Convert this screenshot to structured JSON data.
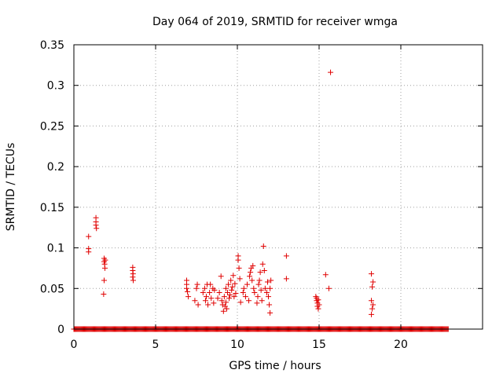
{
  "chart_data": {
    "type": "scatter",
    "title": "Day 064 of 2019, SRMTID for receiver wmga",
    "xlabel": "GPS time / hours",
    "ylabel": "SRMTID / TECUs",
    "xlim": [
      0,
      25
    ],
    "ylim": [
      0,
      0.35
    ],
    "grid": true,
    "marker": "+",
    "marker_color": "#e00000",
    "x_ticks": [
      0,
      5,
      10,
      15,
      20
    ],
    "y_ticks": [
      0,
      0.05,
      0.1,
      0.15,
      0.2,
      0.25,
      0.3,
      0.35
    ],
    "x_tick_labels": [
      "0",
      "5",
      "10",
      "15",
      "20"
    ],
    "y_tick_labels": [
      "0",
      "0.05",
      "0.1",
      "0.15",
      "0.2",
      "0.25",
      "0.3",
      "0.35"
    ],
    "baseline": {
      "y": 0,
      "x_start": 0.0,
      "x_end": 22.9,
      "x_step": 0.05
    },
    "series": [
      {
        "name": "SRMTID",
        "points": [
          [
            0.9,
            0.114
          ],
          [
            0.9,
            0.099
          ],
          [
            0.9,
            0.095
          ],
          [
            1.35,
            0.137
          ],
          [
            1.35,
            0.132
          ],
          [
            1.35,
            0.128
          ],
          [
            1.38,
            0.124
          ],
          [
            1.85,
            0.087
          ],
          [
            1.85,
            0.083
          ],
          [
            1.88,
            0.08
          ],
          [
            1.9,
            0.075
          ],
          [
            1.85,
            0.06
          ],
          [
            1.82,
            0.043
          ],
          [
            1.92,
            0.085
          ],
          [
            3.6,
            0.076
          ],
          [
            3.6,
            0.072
          ],
          [
            3.62,
            0.068
          ],
          [
            3.6,
            0.064
          ],
          [
            3.63,
            0.06
          ],
          [
            6.9,
            0.06
          ],
          [
            6.9,
            0.055
          ],
          [
            6.9,
            0.05
          ],
          [
            6.95,
            0.046
          ],
          [
            7.0,
            0.04
          ],
          [
            7.4,
            0.035
          ],
          [
            7.5,
            0.05
          ],
          [
            7.55,
            0.055
          ],
          [
            7.6,
            0.03
          ],
          [
            7.9,
            0.045
          ],
          [
            8.0,
            0.05
          ],
          [
            8.05,
            0.035
          ],
          [
            8.1,
            0.04
          ],
          [
            8.15,
            0.055
          ],
          [
            8.2,
            0.03
          ],
          [
            8.3,
            0.045
          ],
          [
            8.35,
            0.055
          ],
          [
            8.4,
            0.038
          ],
          [
            8.5,
            0.05
          ],
          [
            8.55,
            0.032
          ],
          [
            8.6,
            0.048
          ],
          [
            8.8,
            0.038
          ],
          [
            8.9,
            0.045
          ],
          [
            9.0,
            0.065
          ],
          [
            9.05,
            0.035
          ],
          [
            9.1,
            0.03
          ],
          [
            9.15,
            0.022
          ],
          [
            9.2,
            0.04
          ],
          [
            9.25,
            0.028
          ],
          [
            9.3,
            0.05
          ],
          [
            9.3,
            0.033
          ],
          [
            9.35,
            0.025
          ],
          [
            9.4,
            0.045
          ],
          [
            9.45,
            0.055
          ],
          [
            9.5,
            0.038
          ],
          [
            9.55,
            0.042
          ],
          [
            9.6,
            0.06
          ],
          [
            9.65,
            0.048
          ],
          [
            9.7,
            0.052
          ],
          [
            9.75,
            0.066
          ],
          [
            9.8,
            0.04
          ],
          [
            9.85,
            0.056
          ],
          [
            9.9,
            0.044
          ],
          [
            10.05,
            0.09
          ],
          [
            10.05,
            0.085
          ],
          [
            10.1,
            0.075
          ],
          [
            10.15,
            0.062
          ],
          [
            10.2,
            0.033
          ],
          [
            10.35,
            0.045
          ],
          [
            10.4,
            0.05
          ],
          [
            10.5,
            0.04
          ],
          [
            10.6,
            0.055
          ],
          [
            10.7,
            0.035
          ],
          [
            10.75,
            0.065
          ],
          [
            10.8,
            0.07
          ],
          [
            10.85,
            0.075
          ],
          [
            10.9,
            0.06
          ],
          [
            10.95,
            0.078
          ],
          [
            11.0,
            0.05
          ],
          [
            11.05,
            0.045
          ],
          [
            11.2,
            0.032
          ],
          [
            11.25,
            0.04
          ],
          [
            11.3,
            0.055
          ],
          [
            11.35,
            0.06
          ],
          [
            11.4,
            0.07
          ],
          [
            11.45,
            0.048
          ],
          [
            11.5,
            0.035
          ],
          [
            11.55,
            0.08
          ],
          [
            11.6,
            0.102
          ],
          [
            11.65,
            0.072
          ],
          [
            11.7,
            0.05
          ],
          [
            11.8,
            0.045
          ],
          [
            11.85,
            0.058
          ],
          [
            11.9,
            0.04
          ],
          [
            11.95,
            0.03
          ],
          [
            12.0,
            0.05
          ],
          [
            12.0,
            0.02
          ],
          [
            12.05,
            0.06
          ],
          [
            13.0,
            0.09
          ],
          [
            13.0,
            0.062
          ],
          [
            14.8,
            0.04
          ],
          [
            14.85,
            0.038
          ],
          [
            14.85,
            0.035
          ],
          [
            14.9,
            0.032
          ],
          [
            14.9,
            0.028
          ],
          [
            14.95,
            0.036
          ],
          [
            14.95,
            0.025
          ],
          [
            15.0,
            0.03
          ],
          [
            15.4,
            0.067
          ],
          [
            15.6,
            0.05
          ],
          [
            15.7,
            0.316
          ],
          [
            18.2,
            0.068
          ],
          [
            18.25,
            0.052
          ],
          [
            18.3,
            0.058
          ],
          [
            18.2,
            0.035
          ],
          [
            18.3,
            0.03
          ],
          [
            18.25,
            0.025
          ],
          [
            18.2,
            0.018
          ]
        ]
      }
    ]
  }
}
